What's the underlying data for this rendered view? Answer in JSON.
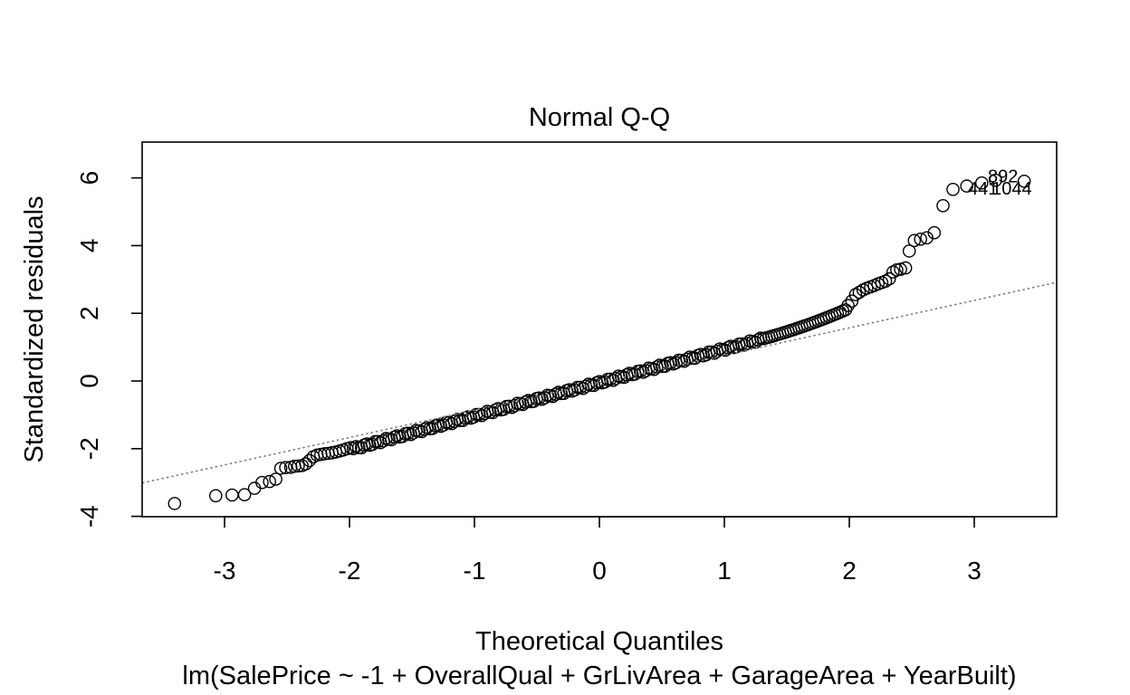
{
  "chart_data": {
    "type": "scatter",
    "title": "Normal Q-Q",
    "xlabel": "Theoretical Quantiles",
    "ylabel": "Standardized residuals",
    "subtitle": "lm(SalePrice ~ -1 + OverallQual + GrLivArea + GarageArea + YearBuilt)",
    "xlim": [
      -3.65,
      3.65
    ],
    "ylim": [
      -4.0,
      7.0
    ],
    "x_ticks": [
      -3,
      -2,
      -1,
      0,
      1,
      2,
      3
    ],
    "x_tick_labels": [
      "-3",
      "-2",
      "-1",
      "0",
      "1",
      "2",
      "3"
    ],
    "y_ticks": [
      -4,
      -2,
      0,
      2,
      4,
      6
    ],
    "y_tick_labels": [
      "-4",
      "-2",
      "0",
      "2",
      "4",
      "6"
    ],
    "grid": false,
    "reference_line": {
      "style": "dotted",
      "color": "#7f7f7f",
      "intercept": -0.05,
      "slope": 0.81
    },
    "tail_points": {
      "lower": [
        [
          -3.4,
          -3.62
        ],
        [
          -3.07,
          -3.39
        ],
        [
          -2.94,
          -3.37
        ],
        [
          -2.84,
          -3.36
        ],
        [
          -2.76,
          -3.17
        ],
        [
          -2.7,
          -3.0
        ],
        [
          -2.64,
          -2.97
        ],
        [
          -2.59,
          -2.9
        ],
        [
          -2.55,
          -2.58
        ],
        [
          -2.51,
          -2.56
        ],
        [
          -2.47,
          -2.55
        ],
        [
          -2.44,
          -2.52
        ],
        [
          -2.41,
          -2.51
        ],
        [
          -2.38,
          -2.5
        ],
        [
          -2.35,
          -2.45
        ],
        [
          -2.32,
          -2.35
        ],
        [
          -2.29,
          -2.24
        ],
        [
          -2.26,
          -2.19
        ],
        [
          -2.23,
          -2.17
        ],
        [
          -2.2,
          -2.15
        ],
        [
          -2.17,
          -2.14
        ],
        [
          -2.14,
          -2.12
        ],
        [
          -2.11,
          -2.1
        ],
        [
          -2.08,
          -2.07
        ],
        [
          -2.05,
          -2.04
        ],
        [
          -2.02,
          -2.0
        ],
        [
          -1.99,
          -1.97
        ]
      ],
      "upper": [
        [
          1.99,
          2.23
        ],
        [
          2.02,
          2.36
        ],
        [
          2.05,
          2.55
        ],
        [
          2.08,
          2.62
        ],
        [
          2.11,
          2.69
        ],
        [
          2.14,
          2.74
        ],
        [
          2.17,
          2.78
        ],
        [
          2.2,
          2.82
        ],
        [
          2.23,
          2.87
        ],
        [
          2.26,
          2.91
        ],
        [
          2.29,
          2.95
        ],
        [
          2.32,
          3.02
        ],
        [
          2.35,
          3.22
        ],
        [
          2.38,
          3.28
        ],
        [
          2.41,
          3.3
        ],
        [
          2.45,
          3.34
        ],
        [
          2.48,
          3.84
        ],
        [
          2.52,
          4.15
        ],
        [
          2.57,
          4.19
        ],
        [
          2.62,
          4.23
        ],
        [
          2.68,
          4.38
        ],
        [
          2.75,
          5.18
        ],
        [
          2.83,
          5.66
        ],
        [
          2.94,
          5.76
        ],
        [
          3.06,
          5.85
        ],
        [
          3.17,
          5.93
        ],
        [
          3.4,
          5.9
        ]
      ]
    },
    "body_range": {
      "x": [
        -1.97,
        1.97
      ],
      "n": 180
    },
    "point_labels": [
      {
        "text": "892",
        "x": 3.23,
        "y": 6.05
      },
      {
        "text": "441",
        "x": 3.07,
        "y": 5.7
      },
      {
        "text": "1044",
        "x": 3.3,
        "y": 5.7
      }
    ]
  }
}
